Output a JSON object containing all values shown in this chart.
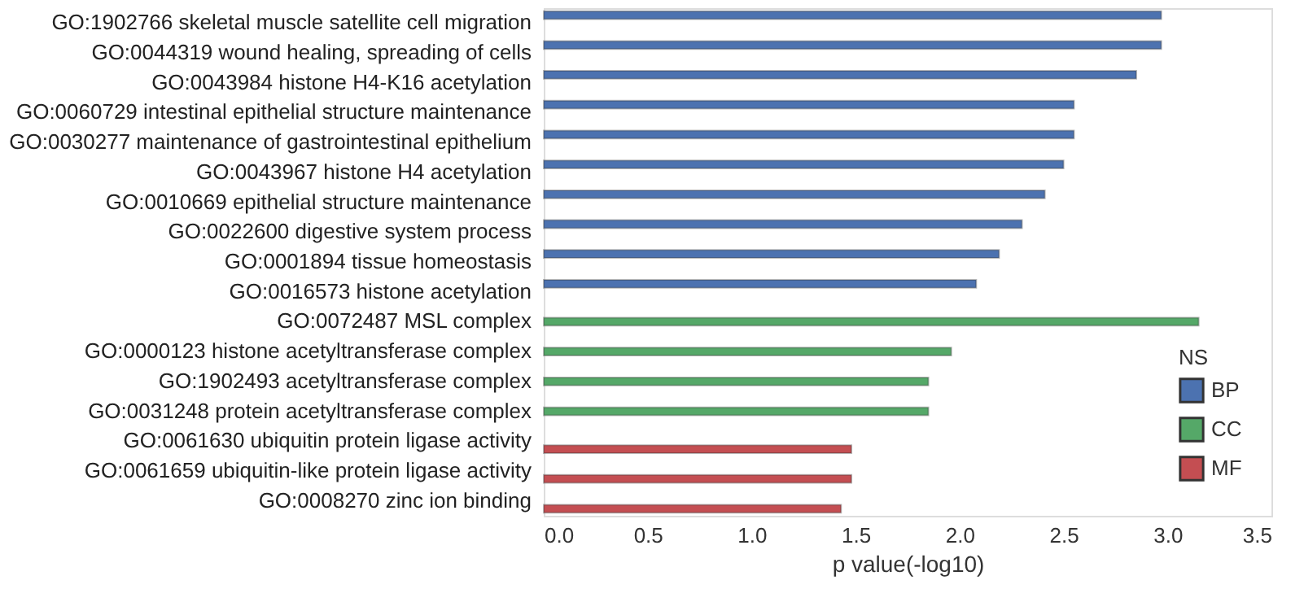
{
  "chart_data": {
    "type": "bar",
    "orientation": "horizontal",
    "xlabel": "p value(-log10)",
    "legend_title": "NS",
    "legend": "bottom right",
    "grid": false,
    "categories": [
      "GO:1902766 skeletal muscle satellite cell migration",
      "GO:0044319 wound healing, spreading of cells",
      "GO:0043984 histone H4-K16 acetylation",
      "GO:0060729 intestinal epithelial structure maintenance",
      "GO:0030277 maintenance of gastrointestinal epithelium",
      "GO:0043967 histone H4 acetylation",
      "GO:0010669 epithelial structure maintenance",
      "GO:0022600 digestive system process",
      "GO:0001894 tissue homeostasis",
      "GO:0016573 histone acetylation",
      "GO:0072487 MSL complex",
      "GO:0000123 histone acetyltransferase complex",
      "GO:1902493 acetyltransferase complex",
      "GO:0031248 protein acetyltransferase complex",
      "GO:0061630 ubiquitin protein ligase activity",
      "GO:0061659 ubiquitin-like protein ligase activity",
      "GO:0008270 zinc ion binding"
    ],
    "series": [
      {
        "name": "BP",
        "color": "#4c72b0",
        "values": [
          2.97,
          2.97,
          2.85,
          2.55,
          2.55,
          2.5,
          2.41,
          2.3,
          2.19,
          2.08,
          null,
          null,
          null,
          null,
          null,
          null,
          null
        ]
      },
      {
        "name": "CC",
        "color": "#55a868",
        "values": [
          null,
          null,
          null,
          null,
          null,
          null,
          null,
          null,
          null,
          null,
          3.15,
          1.96,
          1.85,
          1.85,
          null,
          null,
          null
        ]
      },
      {
        "name": "MF",
        "color": "#c44e52",
        "values": [
          null,
          null,
          null,
          null,
          null,
          null,
          null,
          null,
          null,
          null,
          null,
          null,
          null,
          null,
          1.48,
          1.48,
          1.43
        ]
      }
    ],
    "xlim": [
      0,
      3.5
    ],
    "xticks": [
      {
        "value": 0,
        "label": "0.0"
      },
      {
        "value": 0.5,
        "label": "0.5"
      },
      {
        "value": 1,
        "label": "1.0"
      },
      {
        "value": 1.5,
        "label": "1.5"
      },
      {
        "value": 2,
        "label": "2.0"
      },
      {
        "value": 2.5,
        "label": "2.5"
      },
      {
        "value": 3,
        "label": "3.0"
      },
      {
        "value": 3.5,
        "label": "3.5"
      }
    ]
  }
}
